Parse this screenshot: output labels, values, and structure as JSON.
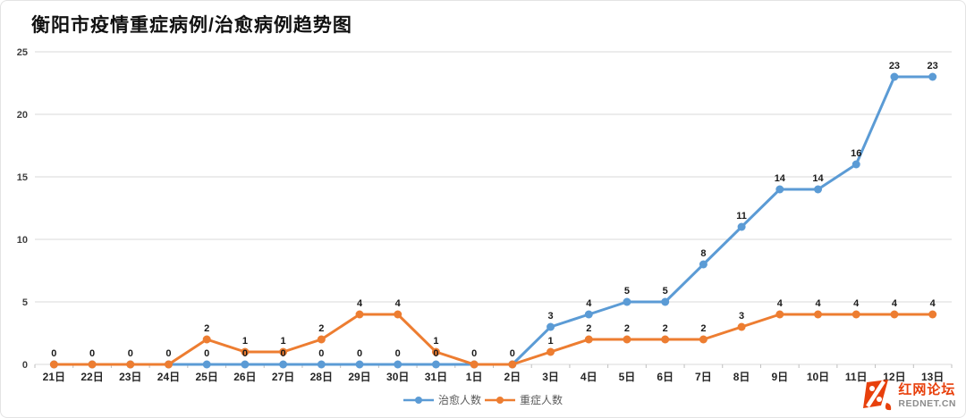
{
  "title": "衡阳市疫情重症病例/治愈病例趋势图",
  "chart_data": {
    "type": "line",
    "categories": [
      "21日",
      "22日",
      "23日",
      "24日",
      "25日",
      "26日",
      "27日",
      "28日",
      "29日",
      "30日",
      "31日",
      "1日",
      "2日",
      "3日",
      "4日",
      "5日",
      "6日",
      "7日",
      "8日",
      "9日",
      "10日",
      "11日",
      "12日",
      "13日"
    ],
    "series": [
      {
        "name": "治愈人数",
        "color": "#5B9BD5",
        "values": [
          0,
          0,
          0,
          0,
          0,
          0,
          0,
          0,
          0,
          0,
          0,
          0,
          0,
          3,
          4,
          5,
          5,
          8,
          11,
          14,
          14,
          16,
          23,
          23
        ]
      },
      {
        "name": "重症人数",
        "color": "#ED7D31",
        "values": [
          0,
          0,
          0,
          0,
          2,
          1,
          1,
          2,
          4,
          4,
          1,
          0,
          0,
          1,
          2,
          2,
          2,
          2,
          3,
          4,
          4,
          4,
          4,
          4
        ]
      }
    ],
    "ylim": [
      0,
      25
    ],
    "yticks": [
      0,
      5,
      10,
      15,
      20,
      25
    ],
    "grid": true,
    "data_labels": true,
    "legend_position": "bottom"
  },
  "colors": {
    "gridline": "#d9d9d9",
    "axis_tick": "#bfbfbf",
    "axis_text": "#404040",
    "data_label": "#1a1a1a"
  },
  "watermark": {
    "brand": "红网论坛",
    "domain": "REDNET.CN",
    "color": "#E8400C"
  }
}
